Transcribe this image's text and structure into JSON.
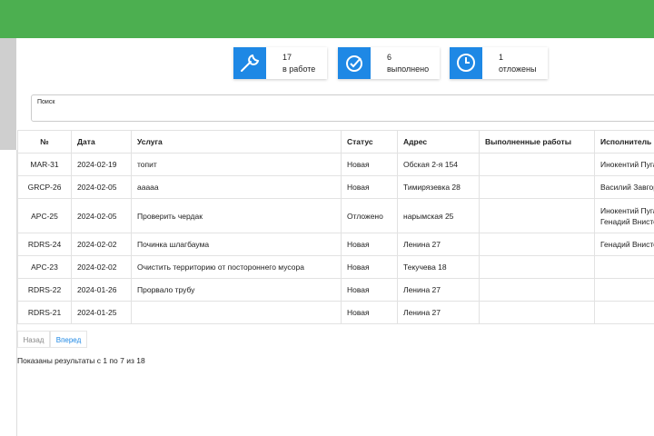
{
  "stats": [
    {
      "value": 17,
      "label": "в работе"
    },
    {
      "value": 6,
      "label": "выполнено"
    },
    {
      "value": 1,
      "label": "отложены"
    }
  ],
  "search": {
    "label": "Поиск"
  },
  "table": {
    "columns": [
      "№",
      "Дата",
      "Услуга",
      "Статус",
      "Адрес",
      "Выполненные работы",
      "Исполнитель"
    ],
    "rows": [
      {
        "id": "MAR-31",
        "date": "2024-02-19",
        "service": "топит",
        "status": "Новая",
        "address": "Обская 2-я 154",
        "executors": [
          "Инокентий Пуга"
        ]
      },
      {
        "id": "GRCP-26",
        "date": "2024-02-05",
        "service": "ааааа",
        "status": "Новая",
        "address": "Тимирязевка 28",
        "executors": [
          "Василий Завгор"
        ]
      },
      {
        "id": "APC-25",
        "date": "2024-02-05",
        "service": "Проверить чердак",
        "status": "Отложено",
        "address": "нарымская 25",
        "executors": [
          "Инокентий Пуга",
          "Генадий Внисто"
        ]
      },
      {
        "id": "RDRS-24",
        "date": "2024-02-02",
        "service": "Починка шлагбаума",
        "status": "Новая",
        "address": "Ленина 27",
        "executors": [
          "Генадий Внисто"
        ]
      },
      {
        "id": "APC-23",
        "date": "2024-02-02",
        "service": "Очистить территорию от постороннего мусора",
        "status": "Новая",
        "address": "Текучева 18"
      },
      {
        "id": "RDRS-22",
        "date": "2024-01-26",
        "service": "Прорвало трубу",
        "status": "Новая",
        "address": "Ленина 27"
      },
      {
        "id": "RDRS-21",
        "date": "2024-01-25",
        "status": "Новая",
        "address": "Ленина 27"
      }
    ]
  },
  "pagination": {
    "prev": "Назад",
    "next": "Вперед",
    "summary": "Показаны результаты с 1 по 7 из 18"
  }
}
